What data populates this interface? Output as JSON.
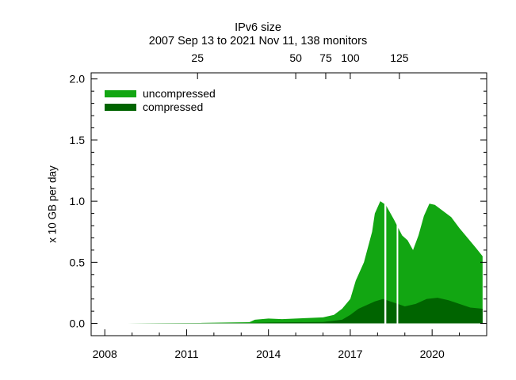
{
  "chart_data": {
    "type": "area",
    "title": "IPv6 size",
    "subtitle": "2007 Sep 13 to 2021 Nov 11, 138 monitors",
    "ylabel": "x 10 GB per day",
    "xlabel": "",
    "xlim": [
      2007.5,
      2022.0
    ],
    "ylim": [
      -0.1,
      2.05
    ],
    "x_ticks": [
      2008,
      2011,
      2014,
      2017,
      2020
    ],
    "y_ticks": [
      0.0,
      0.5,
      1.0,
      1.5,
      2.0
    ],
    "y_tick_labels": [
      "0.0",
      "0.5",
      "1.0",
      "1.5",
      "2.0"
    ],
    "top_axis_ticks": [
      {
        "label": "25",
        "x": 2011.4
      },
      {
        "label": "50",
        "x": 2015.0
      },
      {
        "label": "75",
        "x": 2016.1
      },
      {
        "label": "100",
        "x": 2017.0
      },
      {
        "label": "125",
        "x": 2018.8
      }
    ],
    "legend_position": "top-left",
    "grid": false,
    "series": [
      {
        "name": "uncompressed",
        "color": "#12a612",
        "x": [
          2008.8,
          2010.0,
          2011.5,
          2012.5,
          2013.3,
          2013.5,
          2014.0,
          2014.5,
          2015.0,
          2015.5,
          2016.0,
          2016.4,
          2016.7,
          2017.0,
          2017.2,
          2017.5,
          2017.8,
          2017.9,
          2018.1,
          2018.3,
          2018.6,
          2018.9,
          2019.1,
          2019.3,
          2019.5,
          2019.7,
          2019.9,
          2020.1,
          2020.4,
          2020.7,
          2021.0,
          2021.3,
          2021.6,
          2021.85
        ],
        "values": [
          0.0,
          0.002,
          0.004,
          0.008,
          0.01,
          0.03,
          0.04,
          0.035,
          0.04,
          0.045,
          0.05,
          0.07,
          0.12,
          0.2,
          0.35,
          0.5,
          0.75,
          0.9,
          1.0,
          0.97,
          0.85,
          0.72,
          0.68,
          0.6,
          0.72,
          0.88,
          0.98,
          0.97,
          0.92,
          0.87,
          0.78,
          0.7,
          0.62,
          0.55
        ]
      },
      {
        "name": "compressed",
        "color": "#006400",
        "x": [
          2008.8,
          2012.0,
          2013.3,
          2014.0,
          2015.0,
          2016.0,
          2016.7,
          2017.0,
          2017.3,
          2017.6,
          2017.9,
          2018.2,
          2018.6,
          2019.0,
          2019.4,
          2019.8,
          2020.2,
          2020.6,
          2021.0,
          2021.4,
          2021.85
        ],
        "values": [
          0.0,
          0.002,
          0.004,
          0.008,
          0.01,
          0.012,
          0.03,
          0.07,
          0.12,
          0.15,
          0.18,
          0.2,
          0.17,
          0.14,
          0.16,
          0.2,
          0.21,
          0.19,
          0.16,
          0.13,
          0.12
        ]
      }
    ],
    "gaps": [
      [
        2018.25,
        2018.32
      ],
      [
        2018.7,
        2018.75
      ]
    ]
  }
}
